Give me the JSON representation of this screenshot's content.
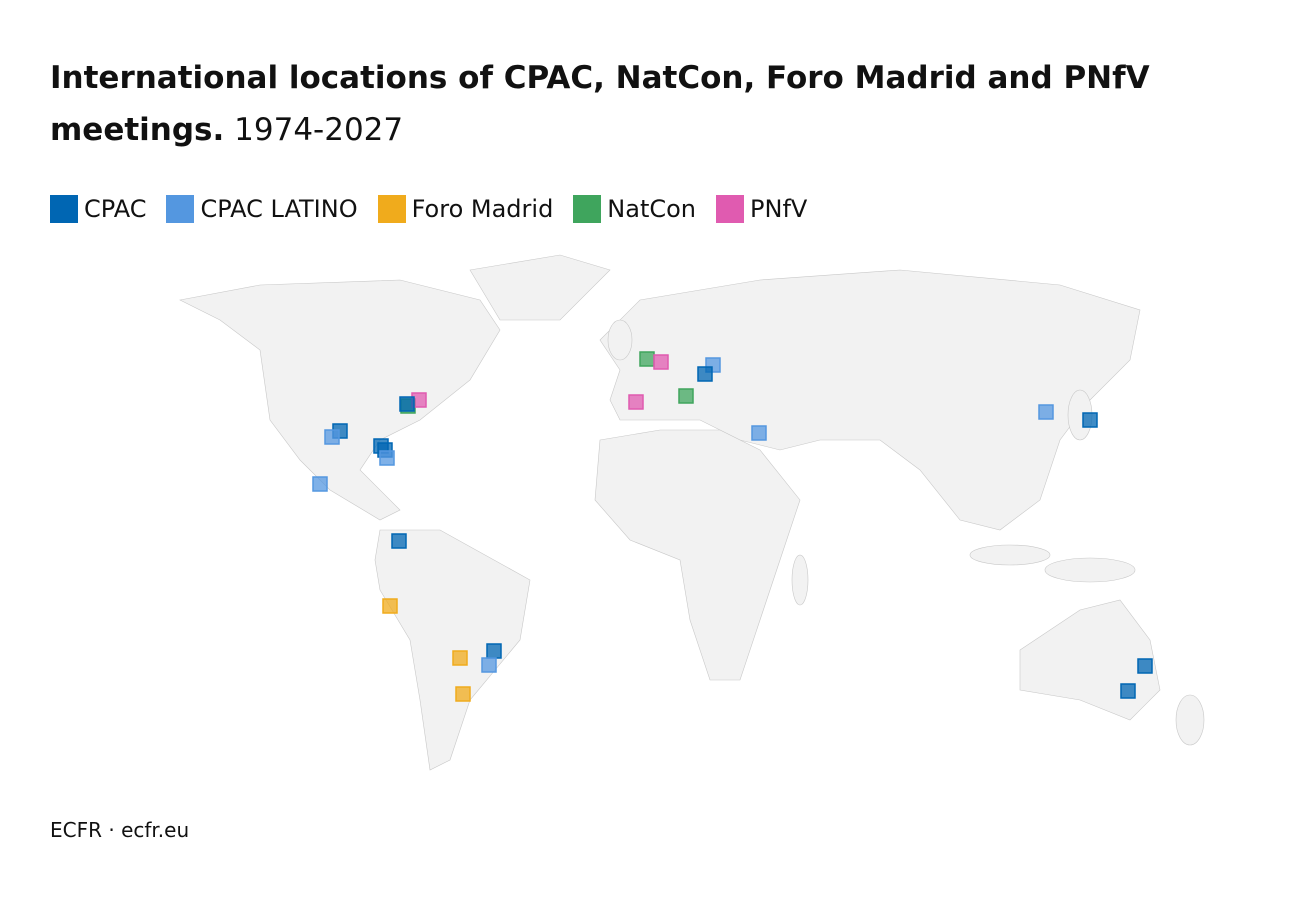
{
  "title": "International locations of CPAC, NatCon, Foro Madrid and PNfV meetings.",
  "subtitle": "1974-2027",
  "legend": [
    {
      "name": "CPAC",
      "color": "#0066b3"
    },
    {
      "name": "CPAC LATINO",
      "color": "#5497e0"
    },
    {
      "name": "Foro Madrid",
      "color": "#f0ab1c"
    },
    {
      "name": "NatCon",
      "color": "#3fa55d"
    },
    {
      "name": "PNfV",
      "color": "#e05bb0"
    }
  ],
  "source": "ECFR · ecfr.eu"
}
